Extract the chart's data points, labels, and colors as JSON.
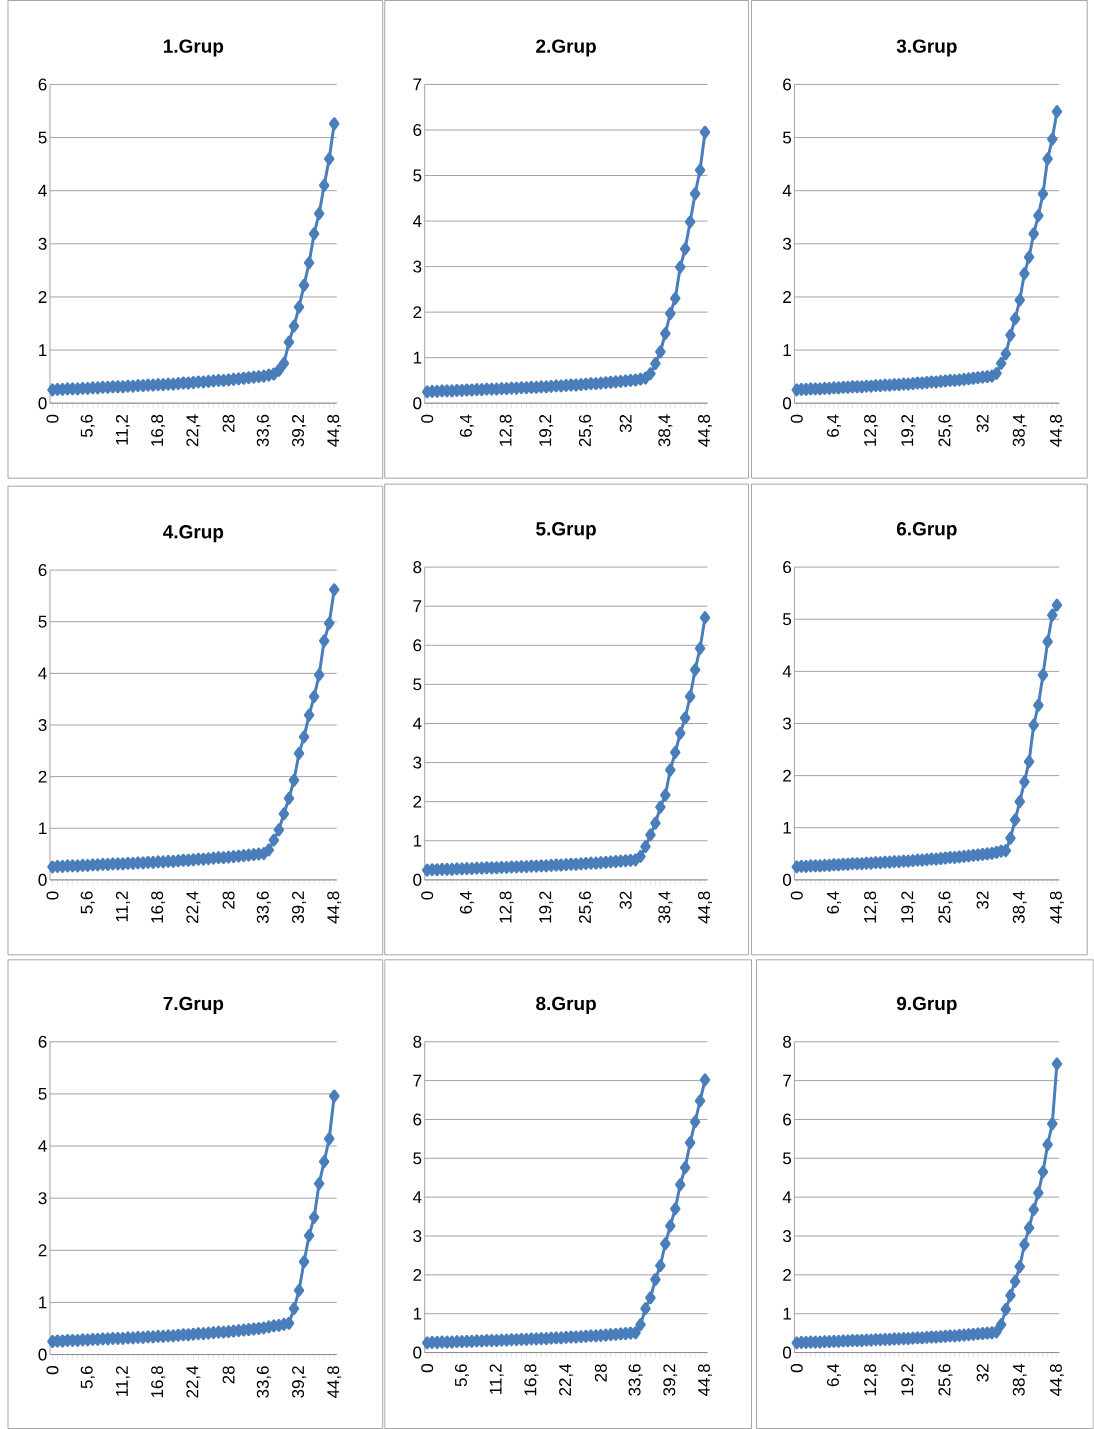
{
  "chart_data": [
    {
      "type": "line",
      "title": "1.Grup",
      "color": "#4a7ebb",
      "marker": "diamond",
      "grid": "y",
      "ylim": [
        0,
        6
      ],
      "yticks": [
        0,
        1,
        2,
        3,
        4,
        5,
        6
      ],
      "categories": [
        "0",
        null,
        null,
        null,
        null,
        null,
        null,
        "5,6",
        null,
        null,
        null,
        null,
        null,
        null,
        "11,2",
        null,
        null,
        null,
        null,
        null,
        null,
        "16,8",
        null,
        null,
        null,
        null,
        null,
        null,
        "22,4",
        null,
        null,
        null,
        null,
        null,
        null,
        "28",
        null,
        null,
        null,
        null,
        null,
        null,
        "33,6",
        null,
        null,
        null,
        null,
        null,
        null,
        "39,2",
        null,
        null,
        null,
        null,
        null,
        null,
        "44,8"
      ],
      "values": [
        0.25,
        0.26,
        0.26,
        0.27,
        0.27,
        0.27,
        0.28,
        0.28,
        0.29,
        0.29,
        0.3,
        0.3,
        0.31,
        0.31,
        0.31,
        0.32,
        0.32,
        0.33,
        0.33,
        0.34,
        0.34,
        0.35,
        0.35,
        0.36,
        0.36,
        0.37,
        0.38,
        0.38,
        0.39,
        0.4,
        0.4,
        0.41,
        0.42,
        0.43,
        0.43,
        0.44,
        0.45,
        0.46,
        0.47,
        0.48,
        0.49,
        0.5,
        0.51,
        0.53,
        0.55,
        0.62,
        0.75,
        1.15,
        1.45,
        1.81,
        2.22,
        2.64,
        3.19,
        3.57,
        4.1,
        4.6,
        5.26
      ]
    },
    {
      "type": "line",
      "title": "2.Grup",
      "color": "#4a7ebb",
      "marker": "diamond",
      "grid": "y",
      "ylim": [
        0,
        7
      ],
      "yticks": [
        0,
        1,
        2,
        3,
        4,
        5,
        6,
        7
      ],
      "categories": [
        "0",
        null,
        null,
        null,
        null,
        null,
        null,
        null,
        "6,4",
        null,
        null,
        null,
        null,
        null,
        null,
        null,
        "12,8",
        null,
        null,
        null,
        null,
        null,
        null,
        null,
        "19,2",
        null,
        null,
        null,
        null,
        null,
        null,
        null,
        "25,6",
        null,
        null,
        null,
        null,
        null,
        null,
        null,
        "32",
        null,
        null,
        null,
        null,
        null,
        null,
        null,
        "38,4",
        null,
        null,
        null,
        null,
        null,
        null,
        null,
        "44,8"
      ],
      "values": [
        0.25,
        0.26,
        0.26,
        0.27,
        0.27,
        0.27,
        0.28,
        0.28,
        0.29,
        0.29,
        0.3,
        0.3,
        0.31,
        0.31,
        0.31,
        0.32,
        0.32,
        0.33,
        0.33,
        0.34,
        0.34,
        0.35,
        0.35,
        0.36,
        0.36,
        0.37,
        0.38,
        0.38,
        0.39,
        0.4,
        0.4,
        0.41,
        0.42,
        0.43,
        0.43,
        0.44,
        0.45,
        0.46,
        0.47,
        0.48,
        0.49,
        0.5,
        0.51,
        0.53,
        0.55,
        0.65,
        0.87,
        1.13,
        1.53,
        1.97,
        2.3,
        2.99,
        3.39,
        3.98,
        4.6,
        5.12,
        5.95
      ]
    },
    {
      "type": "line",
      "title": "3.Grup",
      "color": "#4a7ebb",
      "marker": "diamond",
      "grid": "y",
      "ylim": [
        0,
        6
      ],
      "yticks": [
        0,
        1,
        2,
        3,
        4,
        5,
        6
      ],
      "categories": [
        "0",
        null,
        null,
        null,
        null,
        null,
        null,
        null,
        "6,4",
        null,
        null,
        null,
        null,
        null,
        null,
        null,
        "12,8",
        null,
        null,
        null,
        null,
        null,
        null,
        null,
        "19,2",
        null,
        null,
        null,
        null,
        null,
        null,
        null,
        "25,6",
        null,
        null,
        null,
        null,
        null,
        null,
        null,
        "32",
        null,
        null,
        null,
        null,
        null,
        null,
        null,
        "38,4",
        null,
        null,
        null,
        null,
        null,
        null,
        null,
        "44,8"
      ],
      "values": [
        0.25,
        0.26,
        0.26,
        0.27,
        0.27,
        0.27,
        0.28,
        0.28,
        0.29,
        0.29,
        0.3,
        0.3,
        0.31,
        0.31,
        0.31,
        0.32,
        0.32,
        0.33,
        0.33,
        0.34,
        0.34,
        0.35,
        0.35,
        0.36,
        0.36,
        0.37,
        0.38,
        0.38,
        0.39,
        0.4,
        0.4,
        0.41,
        0.42,
        0.43,
        0.43,
        0.44,
        0.45,
        0.46,
        0.47,
        0.48,
        0.49,
        0.5,
        0.51,
        0.56,
        0.75,
        0.93,
        1.28,
        1.59,
        1.94,
        2.44,
        2.75,
        3.19,
        3.53,
        3.94,
        4.6,
        4.97,
        5.49
      ]
    },
    {
      "type": "line",
      "title": "4.Grup",
      "color": "#4a7ebb",
      "marker": "diamond",
      "grid": "y",
      "ylim": [
        0,
        6
      ],
      "yticks": [
        0,
        1,
        2,
        3,
        4,
        5,
        6
      ],
      "categories": [
        "0",
        null,
        null,
        null,
        null,
        null,
        null,
        "5,6",
        null,
        null,
        null,
        null,
        null,
        null,
        "11,2",
        null,
        null,
        null,
        null,
        null,
        null,
        "16,8",
        null,
        null,
        null,
        null,
        null,
        null,
        "22,4",
        null,
        null,
        null,
        null,
        null,
        null,
        "28",
        null,
        null,
        null,
        null,
        null,
        null,
        "33,6",
        null,
        null,
        null,
        null,
        null,
        null,
        "39,2",
        null,
        null,
        null,
        null,
        null,
        null,
        "44,8"
      ],
      "values": [
        0.25,
        0.26,
        0.26,
        0.27,
        0.27,
        0.27,
        0.28,
        0.28,
        0.29,
        0.29,
        0.3,
        0.3,
        0.31,
        0.31,
        0.31,
        0.32,
        0.32,
        0.33,
        0.33,
        0.34,
        0.34,
        0.35,
        0.35,
        0.36,
        0.36,
        0.37,
        0.38,
        0.38,
        0.39,
        0.4,
        0.4,
        0.41,
        0.42,
        0.43,
        0.43,
        0.44,
        0.45,
        0.46,
        0.47,
        0.48,
        0.49,
        0.5,
        0.51,
        0.58,
        0.77,
        0.97,
        1.28,
        1.58,
        1.93,
        2.45,
        2.77,
        3.19,
        3.55,
        3.97,
        4.63,
        4.97,
        5.62
      ]
    },
    {
      "type": "line",
      "title": "5.Grup",
      "color": "#4a7ebb",
      "marker": "diamond",
      "grid": "y",
      "ylim": [
        0,
        8
      ],
      "yticks": [
        0,
        1,
        2,
        3,
        4,
        5,
        6,
        7,
        8
      ],
      "categories": [
        "0",
        null,
        null,
        null,
        null,
        null,
        null,
        null,
        "6,4",
        null,
        null,
        null,
        null,
        null,
        null,
        null,
        "12,8",
        null,
        null,
        null,
        null,
        null,
        null,
        null,
        "19,2",
        null,
        null,
        null,
        null,
        null,
        null,
        null,
        "25,6",
        null,
        null,
        null,
        null,
        null,
        null,
        null,
        "32",
        null,
        null,
        null,
        null,
        null,
        null,
        null,
        "38,4",
        null,
        null,
        null,
        null,
        null,
        null,
        null,
        "44,8"
      ],
      "values": [
        0.25,
        0.26,
        0.26,
        0.27,
        0.27,
        0.27,
        0.28,
        0.28,
        0.29,
        0.29,
        0.3,
        0.3,
        0.31,
        0.31,
        0.31,
        0.32,
        0.32,
        0.33,
        0.33,
        0.34,
        0.34,
        0.35,
        0.35,
        0.36,
        0.36,
        0.37,
        0.38,
        0.38,
        0.39,
        0.4,
        0.4,
        0.41,
        0.42,
        0.43,
        0.43,
        0.44,
        0.45,
        0.46,
        0.47,
        0.48,
        0.49,
        0.5,
        0.51,
        0.6,
        0.85,
        1.15,
        1.45,
        1.86,
        2.17,
        2.81,
        3.26,
        3.75,
        4.14,
        4.69,
        5.37,
        5.92,
        6.71
      ]
    },
    {
      "type": "line",
      "title": "6.Grup",
      "color": "#4a7ebb",
      "marker": "diamond",
      "grid": "y",
      "ylim": [
        0,
        6
      ],
      "yticks": [
        0,
        1,
        2,
        3,
        4,
        5,
        6
      ],
      "categories": [
        "0",
        null,
        null,
        null,
        null,
        null,
        null,
        null,
        "6,4",
        null,
        null,
        null,
        null,
        null,
        null,
        null,
        "12,8",
        null,
        null,
        null,
        null,
        null,
        null,
        null,
        "19,2",
        null,
        null,
        null,
        null,
        null,
        null,
        null,
        "25,6",
        null,
        null,
        null,
        null,
        null,
        null,
        null,
        "32",
        null,
        null,
        null,
        null,
        null,
        null,
        null,
        "38,4",
        null,
        null,
        null,
        null,
        null,
        null,
        null,
        "44,8"
      ],
      "values": [
        0.25,
        0.26,
        0.26,
        0.27,
        0.27,
        0.27,
        0.28,
        0.28,
        0.29,
        0.29,
        0.3,
        0.3,
        0.31,
        0.31,
        0.31,
        0.32,
        0.32,
        0.33,
        0.33,
        0.34,
        0.34,
        0.35,
        0.35,
        0.36,
        0.36,
        0.37,
        0.38,
        0.38,
        0.39,
        0.4,
        0.4,
        0.41,
        0.42,
        0.43,
        0.43,
        0.44,
        0.45,
        0.46,
        0.47,
        0.48,
        0.49,
        0.5,
        0.51,
        0.53,
        0.55,
        0.56,
        0.8,
        1.15,
        1.5,
        1.88,
        2.27,
        2.97,
        3.35,
        3.93,
        4.57,
        5.08,
        5.27
      ]
    },
    {
      "type": "line",
      "title": "7.Grup",
      "color": "#4a7ebb",
      "marker": "diamond",
      "grid": "y",
      "ylim": [
        0,
        6
      ],
      "yticks": [
        0,
        1,
        2,
        3,
        4,
        5,
        6
      ],
      "categories": [
        "0",
        null,
        null,
        null,
        null,
        null,
        null,
        "5,6",
        null,
        null,
        null,
        null,
        null,
        null,
        "11,2",
        null,
        null,
        null,
        null,
        null,
        null,
        "16,8",
        null,
        null,
        null,
        null,
        null,
        null,
        "22,4",
        null,
        null,
        null,
        null,
        null,
        null,
        "28",
        null,
        null,
        null,
        null,
        null,
        null,
        "33,6",
        null,
        null,
        null,
        null,
        null,
        null,
        "39,2",
        null,
        null,
        null,
        null,
        null,
        null,
        "44,8"
      ],
      "values": [
        0.25,
        0.26,
        0.26,
        0.27,
        0.27,
        0.27,
        0.28,
        0.28,
        0.29,
        0.29,
        0.3,
        0.3,
        0.31,
        0.31,
        0.31,
        0.32,
        0.32,
        0.33,
        0.33,
        0.34,
        0.34,
        0.35,
        0.35,
        0.36,
        0.36,
        0.37,
        0.38,
        0.38,
        0.39,
        0.4,
        0.4,
        0.41,
        0.42,
        0.43,
        0.43,
        0.44,
        0.45,
        0.46,
        0.47,
        0.48,
        0.49,
        0.5,
        0.51,
        0.53,
        0.55,
        0.56,
        0.58,
        0.6,
        0.88,
        1.23,
        1.78,
        2.28,
        2.63,
        3.28,
        3.7,
        4.14,
        4.96
      ]
    },
    {
      "type": "line",
      "title": "8.Grup",
      "color": "#4a7ebb",
      "marker": "diamond",
      "grid": "y",
      "ylim": [
        0,
        8
      ],
      "yticks": [
        0,
        1,
        2,
        3,
        4,
        5,
        6,
        7,
        8
      ],
      "categories": [
        "0",
        null,
        null,
        null,
        null,
        null,
        null,
        "5,6",
        null,
        null,
        null,
        null,
        null,
        null,
        "11,2",
        null,
        null,
        null,
        null,
        null,
        null,
        "16,8",
        null,
        null,
        null,
        null,
        null,
        null,
        "22,4",
        null,
        null,
        null,
        null,
        null,
        null,
        "28",
        null,
        null,
        null,
        null,
        null,
        null,
        "33,6",
        null,
        null,
        null,
        null,
        null,
        null,
        "39,2",
        null,
        null,
        null,
        null,
        null,
        null,
        "44,8"
      ],
      "values": [
        0.25,
        0.26,
        0.26,
        0.27,
        0.27,
        0.27,
        0.28,
        0.28,
        0.29,
        0.29,
        0.3,
        0.3,
        0.31,
        0.31,
        0.31,
        0.32,
        0.32,
        0.33,
        0.33,
        0.34,
        0.34,
        0.35,
        0.35,
        0.36,
        0.36,
        0.37,
        0.38,
        0.38,
        0.39,
        0.4,
        0.4,
        0.41,
        0.42,
        0.43,
        0.43,
        0.44,
        0.45,
        0.46,
        0.47,
        0.48,
        0.49,
        0.5,
        0.51,
        0.72,
        1.13,
        1.41,
        1.88,
        2.24,
        2.8,
        3.26,
        3.7,
        4.32,
        4.76,
        5.4,
        5.94,
        6.48,
        7.02
      ]
    },
    {
      "type": "line",
      "title": "9.Grup",
      "color": "#4a7ebb",
      "marker": "diamond",
      "grid": "y",
      "ylim": [
        0,
        8
      ],
      "yticks": [
        0,
        1,
        2,
        3,
        4,
        5,
        6,
        7,
        8
      ],
      "categories": [
        "0",
        null,
        null,
        null,
        null,
        null,
        null,
        null,
        "6,4",
        null,
        null,
        null,
        null,
        null,
        null,
        null,
        "12,8",
        null,
        null,
        null,
        null,
        null,
        null,
        null,
        "19,2",
        null,
        null,
        null,
        null,
        null,
        null,
        null,
        "25,6",
        null,
        null,
        null,
        null,
        null,
        null,
        null,
        "32",
        null,
        null,
        null,
        null,
        null,
        null,
        null,
        "38,4",
        null,
        null,
        null,
        null,
        null,
        null,
        null,
        "44,8"
      ],
      "values": [
        0.25,
        0.26,
        0.26,
        0.27,
        0.27,
        0.27,
        0.28,
        0.28,
        0.29,
        0.29,
        0.3,
        0.3,
        0.31,
        0.31,
        0.31,
        0.32,
        0.32,
        0.33,
        0.33,
        0.34,
        0.34,
        0.35,
        0.35,
        0.36,
        0.36,
        0.37,
        0.38,
        0.38,
        0.39,
        0.4,
        0.4,
        0.41,
        0.42,
        0.43,
        0.43,
        0.44,
        0.45,
        0.46,
        0.47,
        0.48,
        0.49,
        0.5,
        0.51,
        0.53,
        0.72,
        1.11,
        1.47,
        1.83,
        2.21,
        2.78,
        3.21,
        3.68,
        4.11,
        4.65,
        5.35,
        5.89,
        7.43
      ]
    }
  ]
}
